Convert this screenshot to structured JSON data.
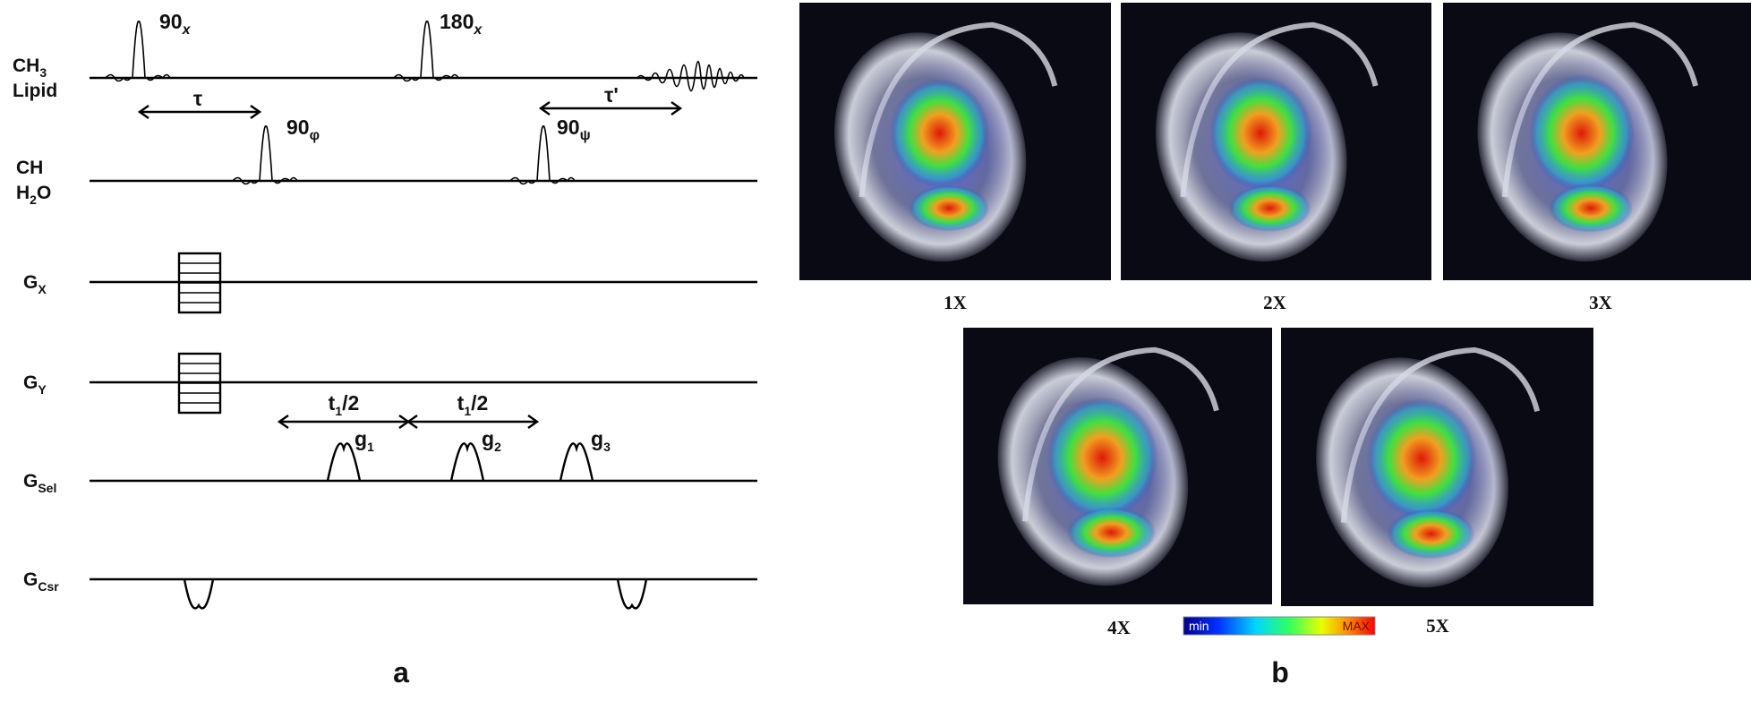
{
  "panel_a": {
    "label": "a",
    "channels": [
      {
        "id": "ch3",
        "main": "CH",
        "sub": "3",
        "line2": "Lipid"
      },
      {
        "id": "ch",
        "main": "CH",
        "sub": "",
        "line2_main": "H",
        "line2_sub": "2",
        "line2_tail": "O"
      },
      {
        "id": "gx",
        "main": "G",
        "sub": "X"
      },
      {
        "id": "gy",
        "main": "G",
        "sub": "Y"
      },
      {
        "id": "gsel",
        "main": "G",
        "sub": "Sel"
      },
      {
        "id": "gcsr",
        "main": "G",
        "sub": "Csr"
      }
    ],
    "pulses": [
      {
        "id": "p90x",
        "main": "90",
        "sub": "x"
      },
      {
        "id": "p180x",
        "main": "180",
        "sub": "x"
      },
      {
        "id": "p90phi",
        "main": "90",
        "sub": "φ"
      },
      {
        "id": "p90psi",
        "main": "90",
        "sub": "ψ"
      }
    ],
    "delays": {
      "tau": "τ",
      "tau_prime": "τ'",
      "t1_half_main": "t",
      "t1_half_sub": "1",
      "t1_half_tail": "/2"
    },
    "gradients": [
      {
        "id": "g1",
        "main": "g",
        "sub": "1"
      },
      {
        "id": "g2",
        "main": "g",
        "sub": "2"
      },
      {
        "id": "g3",
        "main": "g",
        "sub": "3"
      }
    ]
  },
  "panel_b": {
    "label": "b",
    "images": [
      {
        "id": "img1",
        "caption": "1X",
        "hot1": 0.55,
        "hot2": 0.45
      },
      {
        "id": "img2",
        "caption": "2X",
        "hot1": 0.62,
        "hot2": 0.5
      },
      {
        "id": "img3",
        "caption": "3X",
        "hot1": 0.7,
        "hot2": 0.55
      },
      {
        "id": "img4",
        "caption": "4X",
        "hot1": 0.8,
        "hot2": 0.65
      },
      {
        "id": "img5",
        "caption": "5X",
        "hot1": 0.75,
        "hot2": 0.6
      }
    ],
    "colorbar": {
      "min_label": "min",
      "max_label": "MAX"
    },
    "colors": {
      "background": "#0a0a14",
      "overlay_blue": "#2a3fd0",
      "hot": "#e02010",
      "mid": "#30e040"
    }
  }
}
